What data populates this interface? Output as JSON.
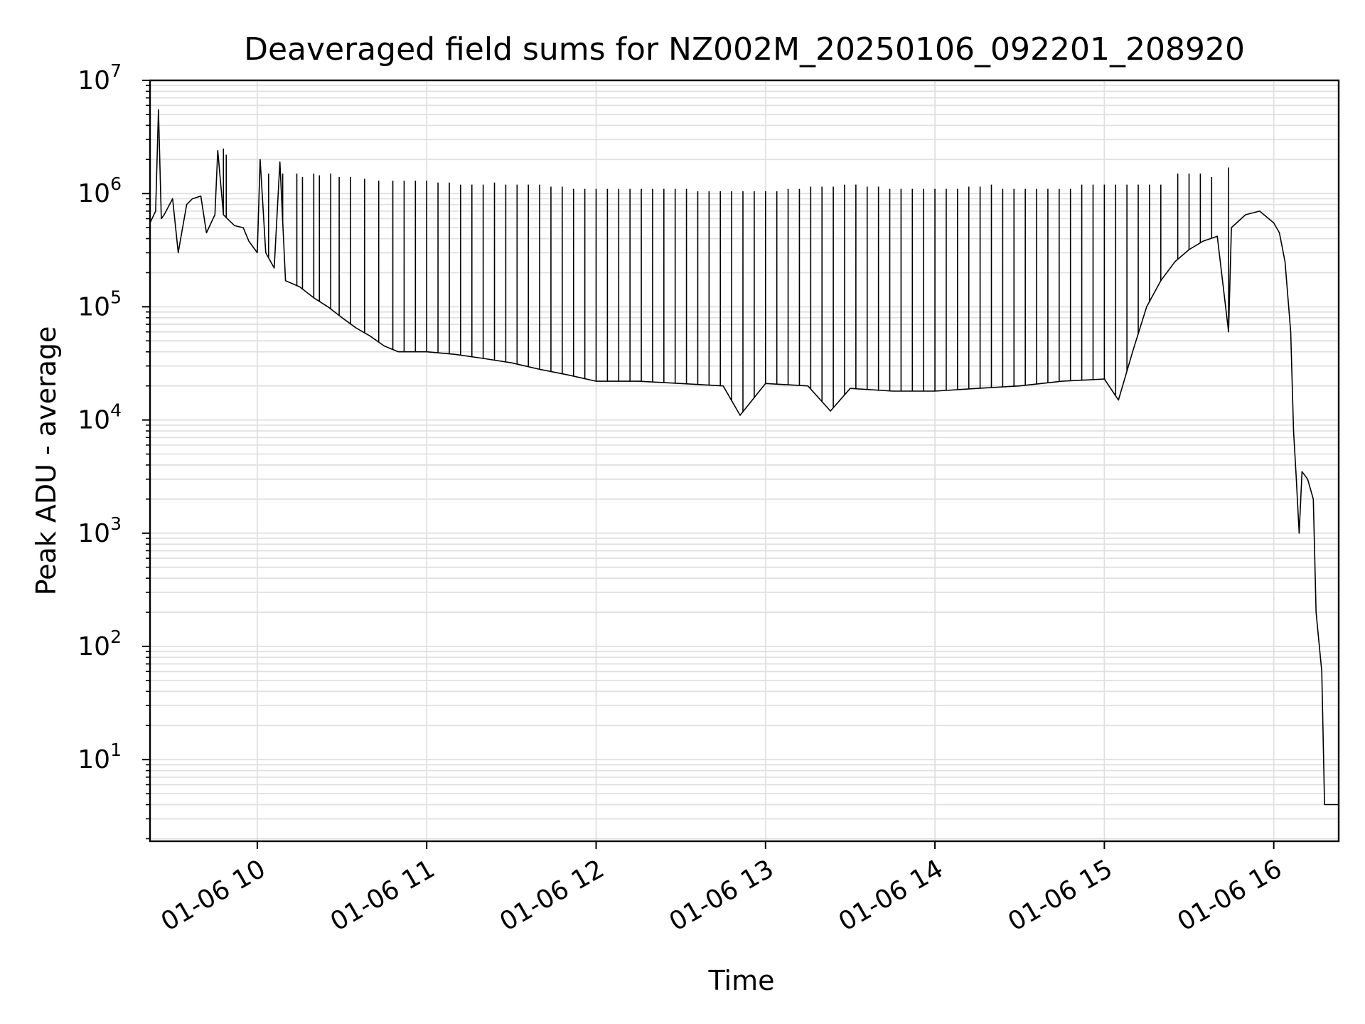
{
  "chart_data": {
    "type": "line",
    "title": "Deaveraged field sums for NZ002M_20250106_092201_208920",
    "xlabel": "Time",
    "ylabel": "Peak ADU - average",
    "y_scale": "log",
    "ylim": [
      1.9,
      10000000
    ],
    "xlim": [
      "2025-01-06 09:22",
      "2025-01-06 16:23"
    ],
    "grid": true,
    "legend": "none",
    "line_color": "#000000",
    "grid_color": "#e0e0e0",
    "x_tick_labels": [
      "01-06 10",
      "01-06 11",
      "01-06 12",
      "01-06 13",
      "01-06 14",
      "01-06 15",
      "01-06 16"
    ],
    "x_tick_values": [
      "2025-01-06 10:00",
      "2025-01-06 11:00",
      "2025-01-06 12:00",
      "2025-01-06 13:00",
      "2025-01-06 14:00",
      "2025-01-06 15:00",
      "2025-01-06 16:00"
    ],
    "y_ticks": [
      {
        "value": 10,
        "base": "10",
        "exp": "1"
      },
      {
        "value": 100,
        "base": "10",
        "exp": "2"
      },
      {
        "value": 1000,
        "base": "10",
        "exp": "3"
      },
      {
        "value": 10000,
        "base": "10",
        "exp": "4"
      },
      {
        "value": 100000,
        "base": "10",
        "exp": "5"
      },
      {
        "value": 1000000,
        "base": "10",
        "exp": "6"
      },
      {
        "value": 10000000,
        "base": "10",
        "exp": "7"
      }
    ],
    "series": [
      {
        "x": [
          "09:22",
          "09:24",
          "09:25",
          "09:26",
          "09:27",
          "09:30",
          "09:32",
          "09:33",
          "09:35",
          "09:37",
          "09:40",
          "09:42",
          "09:45",
          "09:46",
          "09:48",
          "09:50",
          "09:52",
          "09:55",
          "09:57",
          "10:00",
          "10:01",
          "10:03",
          "10:06",
          "10:08",
          "10:10",
          "10:15",
          "10:20",
          "10:25",
          "10:30",
          "10:35",
          "10:40",
          "10:45",
          "10:50",
          "10:55",
          "11:00",
          "11:10",
          "11:20",
          "11:30",
          "11:40",
          "11:50",
          "12:00",
          "12:15",
          "12:30",
          "12:45",
          "12:51",
          "13:00",
          "13:15",
          "13:23",
          "13:30",
          "13:45",
          "14:00",
          "14:15",
          "14:30",
          "14:45",
          "15:00",
          "15:05",
          "15:10",
          "15:15",
          "15:20",
          "15:25",
          "15:30",
          "15:35",
          "15:40",
          "15:44",
          "15:45",
          "15:50",
          "15:55",
          "16:00",
          "16:02",
          "16:04",
          "16:06",
          "16:07",
          "16:08",
          "16:09",
          "16:10",
          "16:12",
          "16:14",
          "16:15",
          "16:17",
          "16:18",
          "16:20",
          "16:23"
        ],
        "y": [
          550000,
          700000,
          5500000,
          600000,
          650000,
          900000,
          300000,
          420000,
          800000,
          900000,
          950000,
          450000,
          650000,
          2400000,
          650000,
          580000,
          520000,
          500000,
          380000,
          300000,
          2000000,
          300000,
          220000,
          1900000,
          170000,
          150000,
          120000,
          100000,
          80000,
          65000,
          55000,
          45000,
          40000,
          40000,
          40000,
          38000,
          35000,
          32000,
          28000,
          25000,
          22000,
          22000,
          21000,
          20000,
          11000,
          21000,
          20000,
          12000,
          19000,
          18000,
          18000,
          19000,
          20000,
          22000,
          23000,
          15000,
          40000,
          100000,
          170000,
          250000,
          320000,
          380000,
          420000,
          60000,
          500000,
          650000,
          700000,
          550000,
          450000,
          250000,
          60000,
          8000,
          3000,
          1000,
          3500,
          3000,
          2000,
          200,
          60,
          4,
          4,
          4
        ]
      },
      {
        "name": "",
        "type": "spikes",
        "x": [
          "09:48",
          "09:49",
          "10:04",
          "10:09",
          "10:14",
          "10:16",
          "10:20",
          "10:22",
          "10:26",
          "10:29",
          "10:33",
          "10:38",
          "10:43",
          "10:48",
          "10:52",
          "10:56",
          "11:00",
          "11:04",
          "11:08",
          "11:12",
          "11:16",
          "11:20",
          "11:24",
          "11:28",
          "11:32",
          "11:36",
          "11:40",
          "11:44",
          "11:48",
          "11:52",
          "11:56",
          "12:00",
          "12:04",
          "12:08",
          "12:12",
          "12:16",
          "12:20",
          "12:24",
          "12:28",
          "12:32",
          "12:36",
          "12:40",
          "12:44",
          "12:48",
          "12:52",
          "12:56",
          "13:00",
          "13:04",
          "13:08",
          "13:12",
          "13:16",
          "13:20",
          "13:24",
          "13:28",
          "13:32",
          "13:36",
          "13:40",
          "13:44",
          "13:48",
          "13:52",
          "13:56",
          "14:00",
          "14:04",
          "14:08",
          "14:12",
          "14:16",
          "14:20",
          "14:24",
          "14:28",
          "14:32",
          "14:36",
          "14:40",
          "14:44",
          "14:48",
          "14:52",
          "14:56",
          "15:00",
          "15:04",
          "15:08",
          "15:12",
          "15:16",
          "15:20",
          "15:26",
          "15:30",
          "15:34",
          "15:38",
          "15:44"
        ],
        "y": [
          2500000,
          2200000,
          1500000,
          1500000,
          1500000,
          1400000,
          1500000,
          1450000,
          1500000,
          1400000,
          1400000,
          1350000,
          1300000,
          1300000,
          1300000,
          1300000,
          1300000,
          1250000,
          1250000,
          1200000,
          1200000,
          1200000,
          1250000,
          1200000,
          1200000,
          1200000,
          1200000,
          1150000,
          1150000,
          1100000,
          1100000,
          1100000,
          1100000,
          1100000,
          1100000,
          1100000,
          1100000,
          1100000,
          1100000,
          1100000,
          1050000,
          1050000,
          1050000,
          1050000,
          1050000,
          1050000,
          1050000,
          1050000,
          1100000,
          1100000,
          1150000,
          1150000,
          1150000,
          1200000,
          1200000,
          1150000,
          1150000,
          1100000,
          1100000,
          1100000,
          1100000,
          1100000,
          1100000,
          1100000,
          1150000,
          1150000,
          1200000,
          1100000,
          1100000,
          1100000,
          1100000,
          1100000,
          1100000,
          1100000,
          1200000,
          1200000,
          1200000,
          1200000,
          1200000,
          1200000,
          1200000,
          1200000,
          1500000,
          1500000,
          1500000,
          1400000,
          1700000
        ]
      }
    ]
  }
}
